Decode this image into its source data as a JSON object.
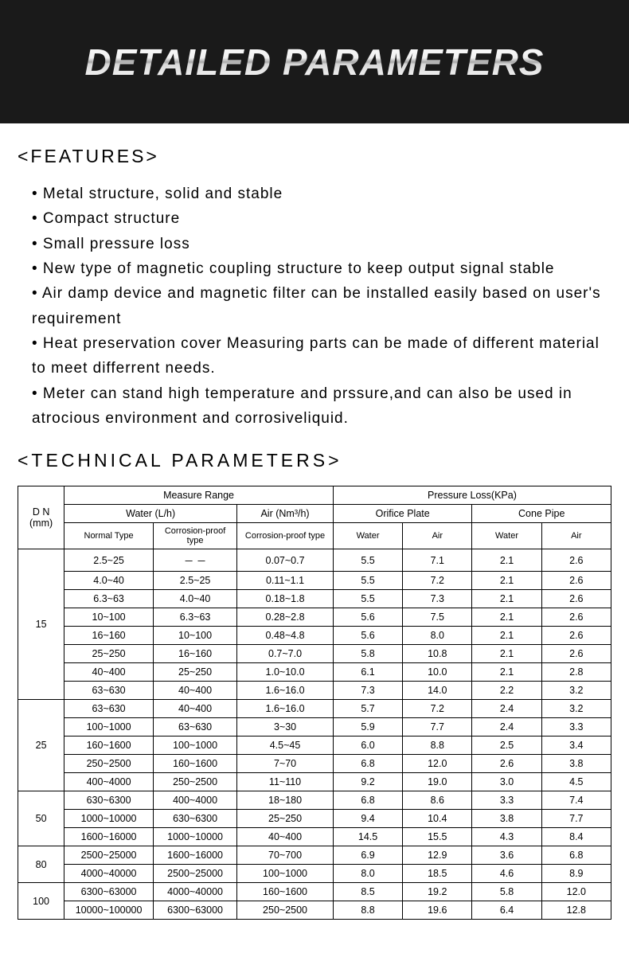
{
  "banner": {
    "title": "DETAILED PARAMETERS"
  },
  "features": {
    "heading": "<FEATURES>",
    "items": [
      "• Metal structure, solid and stable",
      "• Compact structure",
      "• Small pressure loss",
      "• New type of magnetic coupling structure to keep output signal stable",
      "• Air damp device and magnetic filter can be installed easily based on user's requirement",
      "• Heat preservation cover Measuring parts can be made of different material to meet differrent needs.",
      "• Meter can stand high temperature and prssure,and can also be used in atrocious environment and corrosiveliquid."
    ]
  },
  "tech": {
    "heading": "<TECHNICAL PARAMETERS>",
    "table": {
      "headers": {
        "dn": "D N (mm)",
        "measure_range": "Measure Range",
        "water_lh": "Water (L/h)",
        "air_nm3h": "Air (Nm³/h)",
        "normal_type": "Normal Type",
        "corrosion_type": "Corrosion-proof type",
        "pressure_loss": "Pressure Loss(KPa)",
        "orifice_plate": "Orifice Plate",
        "cone_pipe": "Cone Pipe",
        "water": "Water",
        "air": "Air"
      },
      "groups": [
        {
          "dn": "15",
          "rows": [
            [
              "2.5~25",
              "－ －",
              "0.07~0.7",
              "5.5",
              "7.1",
              "2.1",
              "2.6"
            ],
            [
              "4.0~40",
              "2.5~25",
              "0.11~1.1",
              "5.5",
              "7.2",
              "2.1",
              "2.6"
            ],
            [
              "6.3~63",
              "4.0~40",
              "0.18~1.8",
              "5.5",
              "7.3",
              "2.1",
              "2.6"
            ],
            [
              "10~100",
              "6.3~63",
              "0.28~2.8",
              "5.6",
              "7.5",
              "2.1",
              "2.6"
            ],
            [
              "16~160",
              "10~100",
              "0.48~4.8",
              "5.6",
              "8.0",
              "2.1",
              "2.6"
            ],
            [
              "25~250",
              "16~160",
              "0.7~7.0",
              "5.8",
              "10.8",
              "2.1",
              "2.6"
            ],
            [
              "40~400",
              "25~250",
              "1.0~10.0",
              "6.1",
              "10.0",
              "2.1",
              "2.8"
            ],
            [
              "63~630",
              "40~400",
              "1.6~16.0",
              "7.3",
              "14.0",
              "2.2",
              "3.2"
            ]
          ]
        },
        {
          "dn": "25",
          "rows": [
            [
              "63~630",
              "40~400",
              "1.6~16.0",
              "5.7",
              "7.2",
              "2.4",
              "3.2"
            ],
            [
              "100~1000",
              "63~630",
              "3~30",
              "5.9",
              "7.7",
              "2.4",
              "3.3"
            ],
            [
              "160~1600",
              "100~1000",
              "4.5~45",
              "6.0",
              "8.8",
              "2.5",
              "3.4"
            ],
            [
              "250~2500",
              "160~1600",
              "7~70",
              "6.8",
              "12.0",
              "2.6",
              "3.8"
            ],
            [
              "400~4000",
              "250~2500",
              "11~110",
              "9.2",
              "19.0",
              "3.0",
              "4.5"
            ]
          ]
        },
        {
          "dn": "50",
          "rows": [
            [
              "630~6300",
              "400~4000",
              "18~180",
              "6.8",
              "8.6",
              "3.3",
              "7.4"
            ],
            [
              "1000~10000",
              "630~6300",
              "25~250",
              "9.4",
              "10.4",
              "3.8",
              "7.7"
            ],
            [
              "1600~16000",
              "1000~10000",
              "40~400",
              "14.5",
              "15.5",
              "4.3",
              "8.4"
            ]
          ]
        },
        {
          "dn": "80",
          "rows": [
            [
              "2500~25000",
              "1600~16000",
              "70~700",
              "6.9",
              "12.9",
              "3.6",
              "6.8"
            ],
            [
              "4000~40000",
              "2500~25000",
              "100~1000",
              "8.0",
              "18.5",
              "4.6",
              "8.9"
            ]
          ]
        },
        {
          "dn": "100",
          "rows": [
            [
              "6300~63000",
              "4000~40000",
              "160~1600",
              "8.5",
              "19.2",
              "5.8",
              "12.0"
            ],
            [
              "10000~100000",
              "6300~63000",
              "250~2500",
              "8.8",
              "19.6",
              "6.4",
              "12.8"
            ]
          ]
        }
      ]
    }
  }
}
